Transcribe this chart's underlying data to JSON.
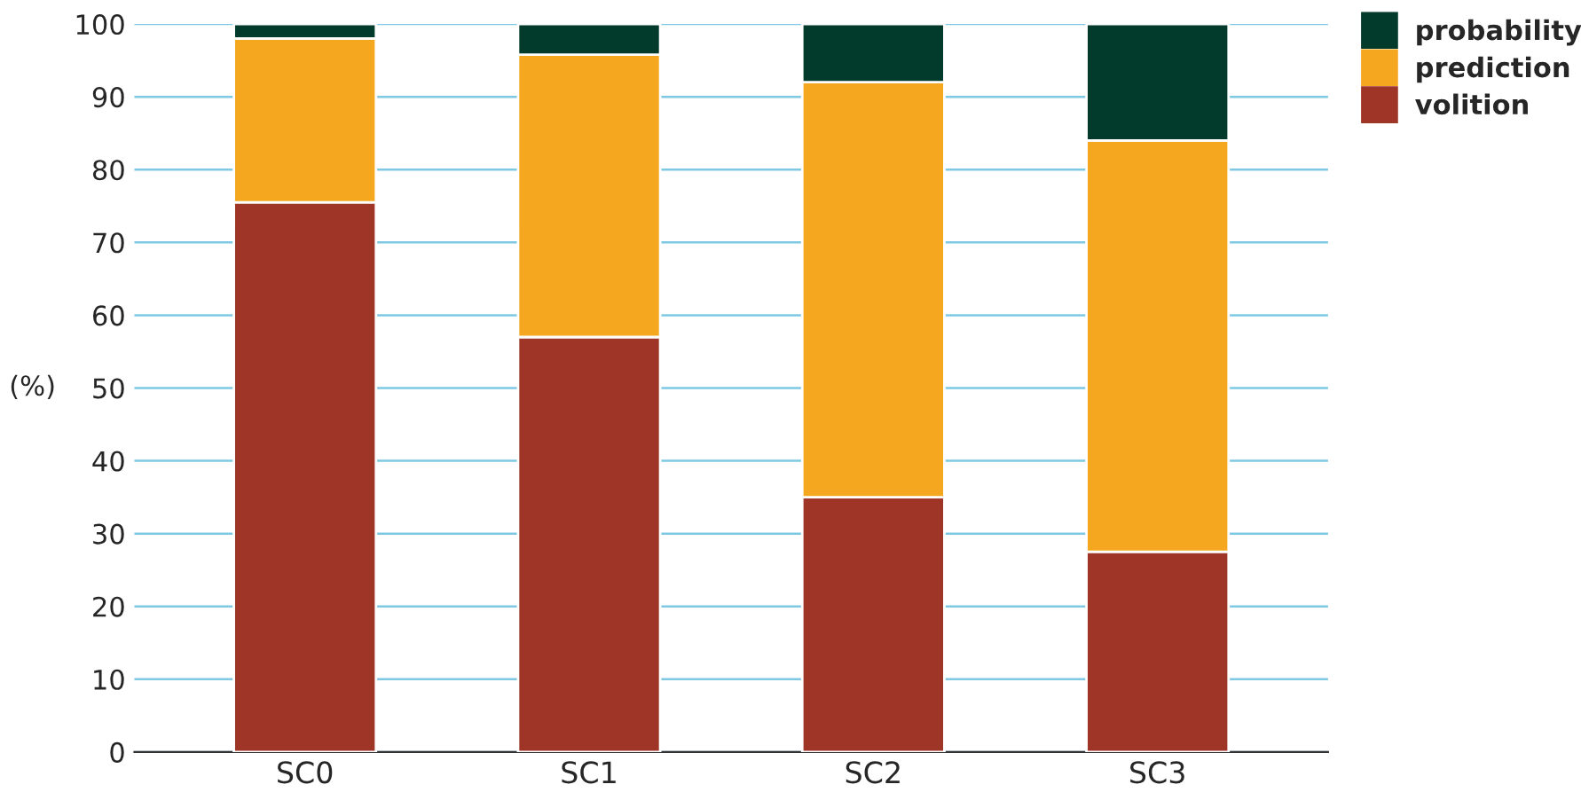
{
  "chart_data": {
    "type": "bar",
    "stacked": true,
    "ylabel": "(%)",
    "categories": [
      "SC0",
      "SC1",
      "SC2",
      "SC3"
    ],
    "series": [
      {
        "name": "volition",
        "color": "#9e3527",
        "values": [
          75.5,
          57,
          35,
          27.5
        ]
      },
      {
        "name": "prediction",
        "color": "#f5a81f",
        "values": [
          22.5,
          38.8,
          57,
          56.5
        ]
      },
      {
        "name": "probability",
        "color": "#023a2b",
        "values": [
          2,
          4.2,
          8,
          16
        ]
      }
    ],
    "ylim": [
      0,
      100
    ],
    "yticks": [
      0,
      10,
      20,
      30,
      40,
      50,
      60,
      70,
      80,
      90,
      100
    ],
    "grid": "y",
    "legend": "top right"
  }
}
